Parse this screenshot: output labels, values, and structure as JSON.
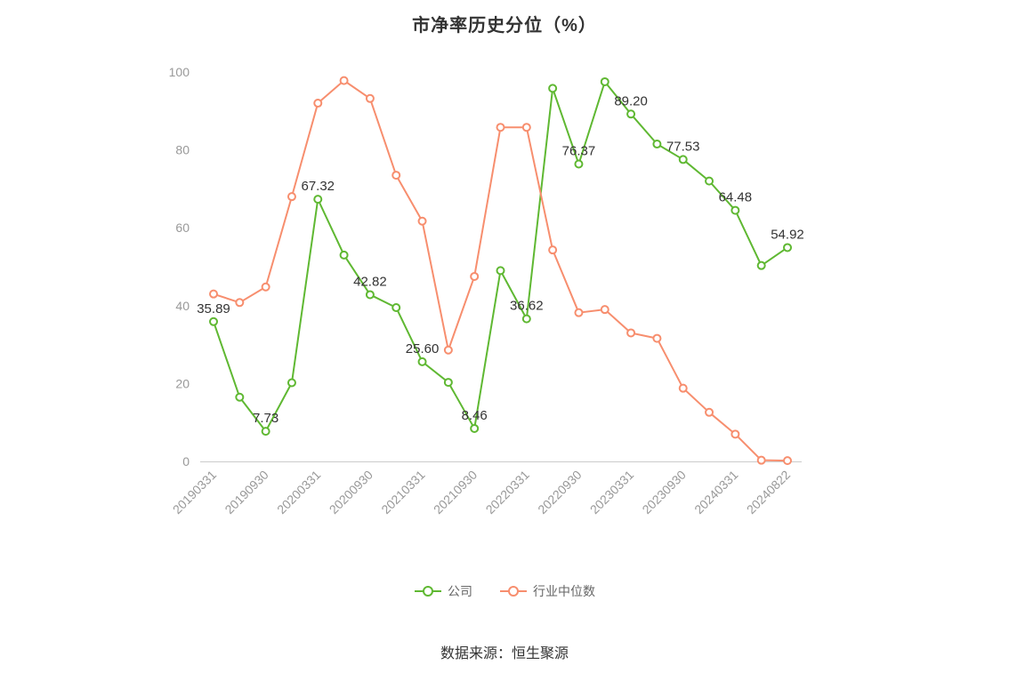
{
  "chart_data": {
    "type": "line",
    "title": "市净率历史分位（%）",
    "x_tick_labels": [
      "20190331",
      "20190930",
      "20200331",
      "20200930",
      "20210331",
      "20210930",
      "20220331",
      "20220930",
      "20230331",
      "20230930",
      "20240331",
      "20240822"
    ],
    "tick_every": 2,
    "ylim": [
      0,
      100
    ],
    "y_ticks": [
      0,
      20,
      40,
      60,
      80,
      100
    ],
    "grid": false,
    "legend_position": "bottom",
    "axis_color": "#cccccc",
    "tick_label_color": "#999999",
    "point_label_color": "#333333",
    "series": [
      {
        "id": "company",
        "name": "公司",
        "color": "#5fb832",
        "values": [
          35.89,
          16.5,
          7.73,
          20.2,
          67.32,
          53.0,
          42.82,
          39.5,
          25.6,
          20.3,
          8.46,
          49.0,
          36.62,
          95.8,
          76.37,
          97.5,
          89.2,
          81.5,
          77.53,
          72.0,
          64.48,
          50.3,
          54.92
        ],
        "point_labels": {
          "0": "35.89",
          "2": "7.73",
          "4": "67.32",
          "6": "42.82",
          "8": "25.60",
          "10": "8.46",
          "12": "36.62",
          "14": "76.37",
          "16": "89.20",
          "18": "77.53",
          "20": "64.48",
          "22": "54.92"
        }
      },
      {
        "id": "industry-median",
        "name": "行业中位数",
        "color": "#f78e6e",
        "values": [
          43.0,
          40.8,
          44.8,
          68.0,
          92.0,
          97.8,
          93.2,
          73.5,
          61.7,
          28.6,
          47.5,
          85.8,
          85.8,
          54.3,
          38.2,
          39.0,
          33.0,
          31.6,
          18.8,
          12.6,
          7.0,
          0.3,
          0.2
        ]
      }
    ]
  },
  "footer": {
    "source": "数据来源：恒生聚源"
  }
}
